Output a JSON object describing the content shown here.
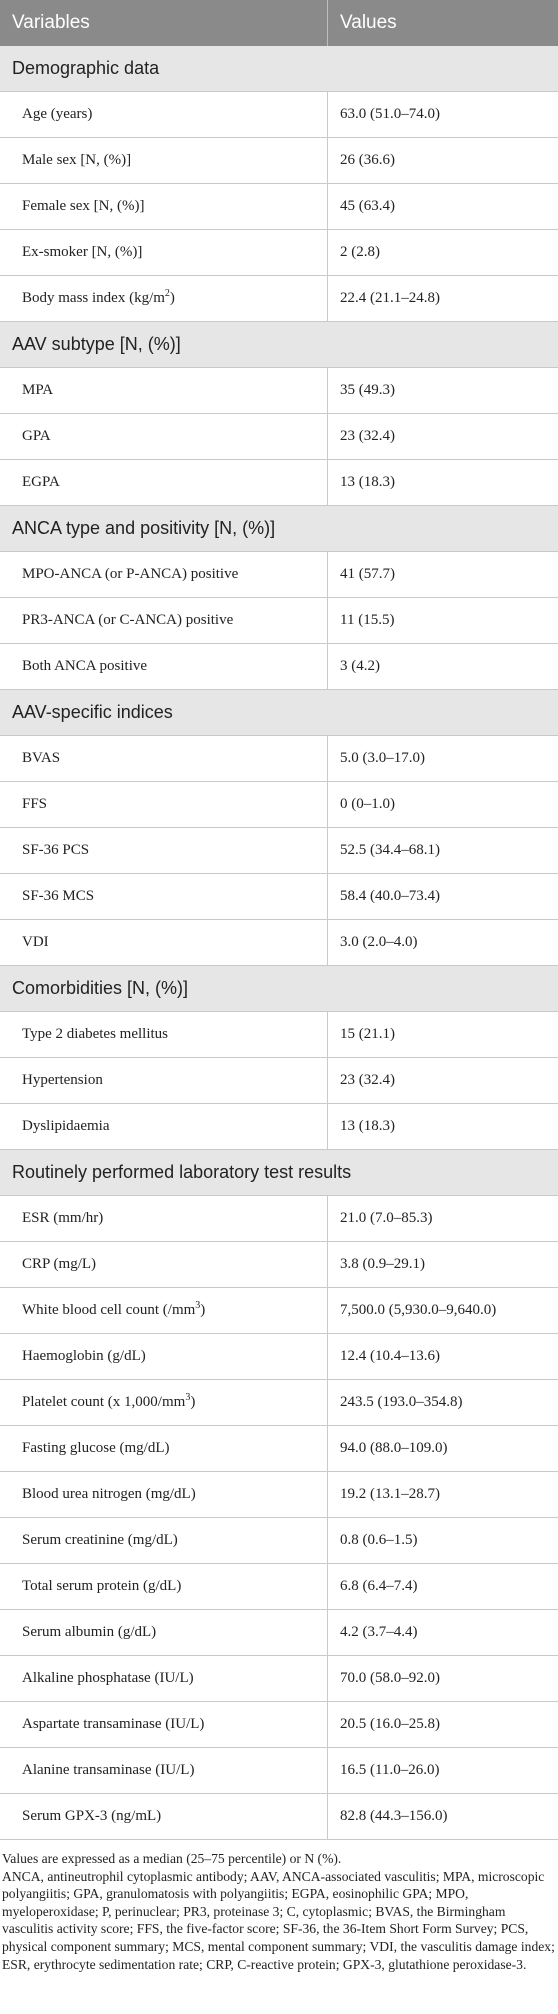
{
  "table": {
    "header": [
      "Variables",
      "Values"
    ],
    "sections": [
      {
        "title": "Demographic data",
        "rows": [
          [
            "Age (years)",
            "63.0 (51.0–74.0)"
          ],
          [
            "Male sex [N, (%)]",
            "26 (36.6)"
          ],
          [
            "Female sex [N, (%)]",
            "45 (63.4)"
          ],
          [
            "Ex-smoker [N, (%)]",
            "2 (2.8)"
          ],
          [
            {
              "text": "Body mass index (kg/m",
              "sup": "2",
              "rest": ")"
            },
            "22.4 (21.1–24.8)"
          ]
        ]
      },
      {
        "title": "AAV subtype [N, (%)]",
        "rows": [
          [
            "MPA",
            "35 (49.3)"
          ],
          [
            "GPA",
            "23 (32.4)"
          ],
          [
            "EGPA",
            "13 (18.3)"
          ]
        ]
      },
      {
        "title": "ANCA type and positivity [N, (%)]",
        "rows": [
          [
            "MPO-ANCA (or P-ANCA) positive",
            "41 (57.7)"
          ],
          [
            "PR3-ANCA (or C-ANCA) positive",
            "11 (15.5)"
          ],
          [
            "Both ANCA positive",
            "3 (4.2)"
          ]
        ]
      },
      {
        "title": "AAV-specific indices",
        "rows": [
          [
            "BVAS",
            "5.0 (3.0–17.0)"
          ],
          [
            "FFS",
            "0 (0–1.0)"
          ],
          [
            "SF-36 PCS",
            "52.5 (34.4–68.1)"
          ],
          [
            "SF-36 MCS",
            "58.4 (40.0–73.4)"
          ],
          [
            "VDI",
            "3.0 (2.0–4.0)"
          ]
        ]
      },
      {
        "title": "Comorbidities [N, (%)]",
        "rows": [
          [
            "Type 2 diabetes mellitus",
            "15 (21.1)"
          ],
          [
            "Hypertension",
            "23 (32.4)"
          ],
          [
            "Dyslipidaemia",
            "13 (18.3)"
          ]
        ]
      },
      {
        "title": "Routinely performed laboratory test results",
        "rows": [
          [
            "ESR (mm/hr)",
            "21.0 (7.0–85.3)"
          ],
          [
            "CRP (mg/L)",
            "3.8 (0.9–29.1)"
          ],
          [
            {
              "text": "White blood cell count (/mm",
              "sup": "3",
              "rest": ")"
            },
            "7,500.0 (5,930.0–9,640.0)"
          ],
          [
            "Haemoglobin (g/dL)",
            "12.4 (10.4–13.6)"
          ],
          [
            {
              "text": "Platelet count (x 1,000/mm",
              "sup": "3",
              "rest": ")"
            },
            "243.5 (193.0–354.8)"
          ],
          [
            "Fasting glucose (mg/dL)",
            "94.0 (88.0–109.0)"
          ],
          [
            "Blood urea nitrogen (mg/dL)",
            "19.2 (13.1–28.7)"
          ],
          [
            "Serum creatinine (mg/dL)",
            "0.8 (0.6–1.5)"
          ],
          [
            "Total serum protein (g/dL)",
            "6.8 (6.4–7.4)"
          ],
          [
            "Serum albumin (g/dL)",
            "4.2 (3.7–4.4)"
          ],
          [
            "Alkaline phosphatase (IU/L)",
            "70.0 (58.0–92.0)"
          ],
          [
            "Aspartate transaminase (IU/L)",
            "20.5 (16.0–25.8)"
          ],
          [
            "Alanine transaminase (IU/L)",
            "16.5 (11.0–26.0)"
          ],
          [
            "Serum GPX-3 (ng/mL)",
            "82.8 (44.3–156.0)"
          ]
        ]
      }
    ]
  },
  "footnote": [
    "Values are expressed as a median (25–75 percentile) or N (%).",
    "ANCA, antineutrophil cytoplasmic antibody; AAV, ANCA-associated vasculitis; MPA, microscopic polyangiitis; GPA, granulomatosis with polyangiitis; EGPA, eosinophilic GPA; MPO, myeloperoxidase; P, perinuclear; PR3, proteinase 3; C, cytoplasmic; BVAS, the Birmingham vasculitis activity score; FFS, the five-factor score; SF-36, the 36-Item Short Form Survey; PCS, physical component summary; MCS, mental component summary; VDI, the vasculitis damage index; ESR, erythrocyte sedimentation rate; CRP, C-reactive protein; GPX-3, glutathione peroxidase-3."
  ]
}
